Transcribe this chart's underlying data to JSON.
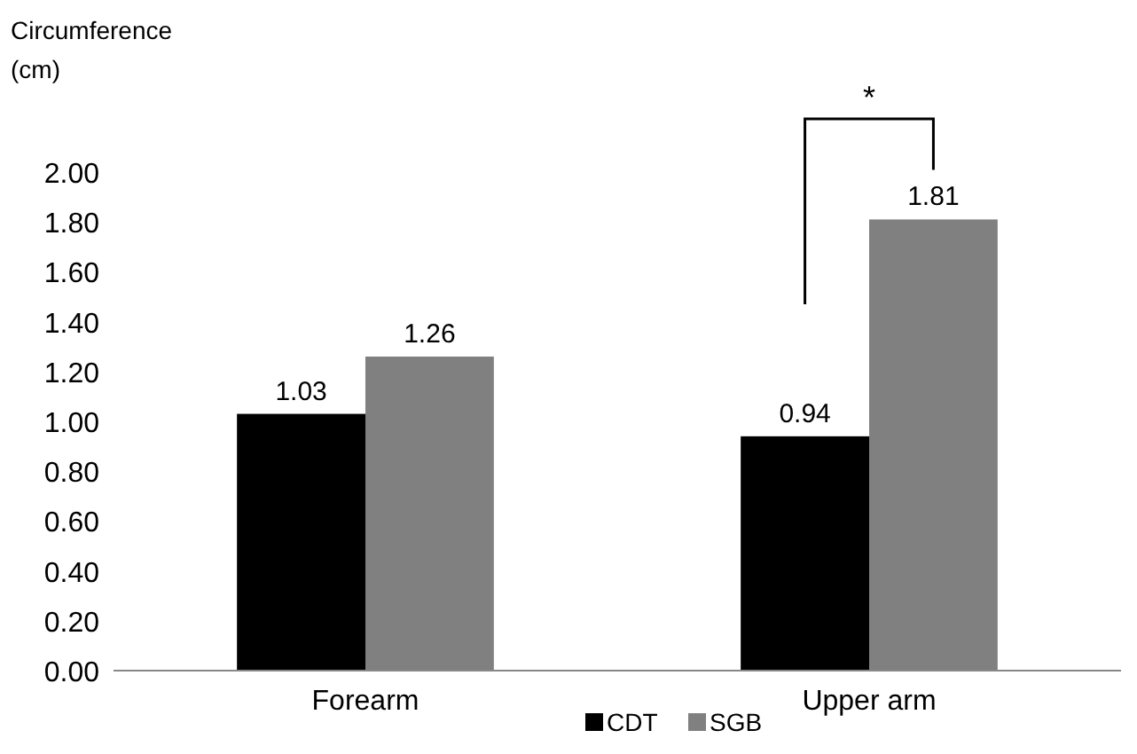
{
  "chart_data": {
    "type": "bar",
    "ylabel": "Circumference (cm)",
    "categories": [
      "Forearm",
      "Upper arm"
    ],
    "series": [
      {
        "name": "CDT",
        "color": "#000000",
        "values": [
          1.03,
          0.94
        ]
      },
      {
        "name": "SGB",
        "color": "#808080",
        "values": [
          1.26,
          1.81
        ]
      }
    ],
    "ylim": [
      0,
      2
    ],
    "yticks": [
      {
        "value": 0,
        "label": "0.00"
      },
      {
        "value": 0.2,
        "label": "0.20"
      },
      {
        "value": 0.4,
        "label": "0.40"
      },
      {
        "value": 0.6,
        "label": "0.60"
      },
      {
        "value": 0.8,
        "label": "0.80"
      },
      {
        "value": 1,
        "label": "1.00"
      },
      {
        "value": 1.2,
        "label": "1.20"
      },
      {
        "value": 1.4,
        "label": "1.40"
      },
      {
        "value": 1.6,
        "label": "1.60"
      },
      {
        "value": 1.8,
        "label": "1.80"
      },
      {
        "value": 2,
        "label": "2.00"
      }
    ],
    "data_labels": true,
    "legend": "bottom",
    "grid": false,
    "annotations": [
      "*"
    ]
  }
}
